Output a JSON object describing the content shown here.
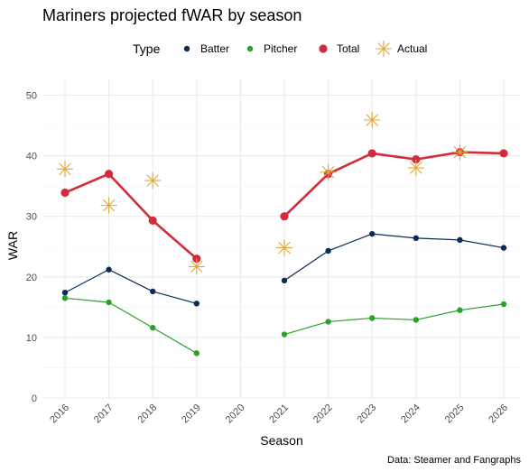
{
  "chart_data": {
    "type": "line",
    "title": "Mariners projected fWAR by season",
    "xlabel": "Season",
    "ylabel": "WAR",
    "caption": "Data: Steamer and Fangraphs",
    "categories": [
      "2016",
      "2017",
      "2018",
      "2019",
      "2020",
      "2021",
      "2022",
      "2023",
      "2024",
      "2025",
      "2026"
    ],
    "ylim": [
      0,
      50
    ],
    "yticks": [
      0,
      10,
      20,
      30,
      40,
      50
    ],
    "legend": {
      "title": "Type",
      "placement": "top",
      "entries": [
        "Batter",
        "Pitcher",
        "Total",
        "Actual"
      ]
    },
    "series": [
      {
        "name": "Batter",
        "color": "#0c2c56",
        "style": "line-point",
        "values": [
          17.4,
          21.2,
          17.6,
          15.6,
          null,
          19.4,
          24.3,
          27.1,
          26.4,
          26.1,
          24.8
        ]
      },
      {
        "name": "Pitcher",
        "color": "#2ca02c",
        "style": "line-point",
        "values": [
          16.5,
          15.8,
          11.6,
          7.4,
          null,
          10.5,
          12.6,
          13.2,
          12.9,
          14.5,
          15.5
        ]
      },
      {
        "name": "Total",
        "color": "#d22b3c",
        "style": "thick-line-point",
        "values": [
          33.9,
          37.0,
          29.3,
          23.0,
          null,
          30.0,
          37.0,
          40.4,
          39.4,
          40.6,
          40.4
        ]
      },
      {
        "name": "Actual",
        "color": "#e0a63a",
        "style": "asterisk",
        "values": [
          37.8,
          31.8,
          35.9,
          21.7,
          null,
          24.8,
          37.3,
          45.9,
          38.0,
          40.6,
          null
        ]
      }
    ],
    "grid": true
  }
}
